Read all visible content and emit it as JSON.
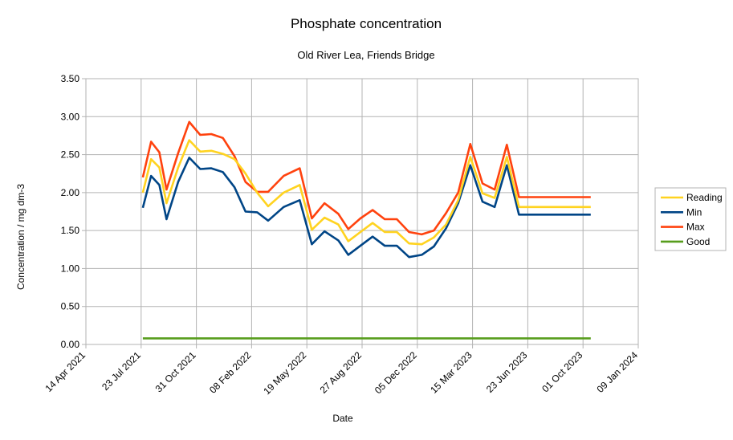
{
  "chart_data": {
    "type": "line",
    "title": "Phosphate concentration",
    "subtitle": "Old River Lea, Friends Bridge",
    "xlabel": "Date",
    "ylabel": "Concentration / mg dm-3",
    "xlim": [
      "2021-04-14",
      "2024-01-09"
    ],
    "x_ticks": [
      "14 Apr 2021",
      "23 Jul 2021",
      "31 Oct 2021",
      "08 Feb 2022",
      "19 May 2022",
      "27 Aug 2022",
      "05 Dec 2022",
      "15 Mar 2023",
      "23 Jun 2023",
      "01 Oct 2023",
      "09 Jan 2024"
    ],
    "ylim": [
      0,
      3.5
    ],
    "y_ticks": [
      "0.00",
      "0.50",
      "1.00",
      "1.50",
      "2.00",
      "2.50",
      "3.00",
      "3.50"
    ],
    "grid": true,
    "legend_position": "right",
    "x": [
      "2021-07-26",
      "2021-08-10",
      "2021-08-25",
      "2021-09-07",
      "2021-09-28",
      "2021-10-18",
      "2021-11-07",
      "2021-11-27",
      "2021-12-18",
      "2022-01-08",
      "2022-01-28",
      "2022-02-18",
      "2022-03-10",
      "2022-04-07",
      "2022-05-06",
      "2022-05-28",
      "2022-06-20",
      "2022-07-15",
      "2022-08-02",
      "2022-08-24",
      "2022-09-15",
      "2022-10-07",
      "2022-10-29",
      "2022-11-20",
      "2022-12-13",
      "2023-01-04",
      "2023-01-26",
      "2023-02-17",
      "2023-03-11",
      "2023-04-02",
      "2023-04-24",
      "2023-05-16",
      "2023-06-07",
      "2023-06-29",
      "2023-07-21",
      "2023-08-12",
      "2023-09-03",
      "2023-09-25",
      "2023-10-15"
    ],
    "series": [
      {
        "name": "Reading",
        "color": "#ffd320",
        "values": [
          2.0,
          2.44,
          2.33,
          1.86,
          2.33,
          2.69,
          2.54,
          2.55,
          2.51,
          2.44,
          2.25,
          2.0,
          1.82,
          2.0,
          2.1,
          1.51,
          1.67,
          1.58,
          1.36,
          1.48,
          1.6,
          1.48,
          1.48,
          1.33,
          1.32,
          1.41,
          1.58,
          1.9,
          2.47,
          1.99,
          1.93,
          2.47,
          1.81,
          1.81,
          1.81,
          1.81,
          1.81,
          1.81,
          1.81
        ]
      },
      {
        "name": "Min",
        "color": "#004586",
        "values": [
          1.8,
          2.22,
          2.1,
          1.65,
          2.14,
          2.46,
          2.31,
          2.32,
          2.27,
          2.07,
          1.75,
          1.74,
          1.63,
          1.81,
          1.9,
          1.32,
          1.49,
          1.37,
          1.18,
          1.3,
          1.42,
          1.3,
          1.3,
          1.15,
          1.18,
          1.29,
          1.53,
          1.86,
          2.36,
          1.88,
          1.81,
          2.36,
          1.71,
          1.71,
          1.71,
          1.71,
          1.71,
          1.71,
          1.71
        ]
      },
      {
        "name": "Max",
        "color": "#ff420e",
        "values": [
          2.2,
          2.67,
          2.53,
          2.04,
          2.52,
          2.93,
          2.76,
          2.77,
          2.72,
          2.48,
          2.14,
          2.01,
          2.01,
          2.22,
          2.32,
          1.66,
          1.86,
          1.72,
          1.52,
          1.66,
          1.77,
          1.65,
          1.65,
          1.48,
          1.45,
          1.5,
          1.73,
          2.0,
          2.64,
          2.12,
          2.04,
          2.63,
          1.94,
          1.94,
          1.94,
          1.94,
          1.94,
          1.94,
          1.94
        ]
      },
      {
        "name": "Good",
        "color": "#579d1c",
        "values": [
          0.08,
          0.08,
          0.08,
          0.08,
          0.08,
          0.08,
          0.08,
          0.08,
          0.08,
          0.08,
          0.08,
          0.08,
          0.08,
          0.08,
          0.08,
          0.08,
          0.08,
          0.08,
          0.08,
          0.08,
          0.08,
          0.08,
          0.08,
          0.08,
          0.08,
          0.08,
          0.08,
          0.08,
          0.08,
          0.08,
          0.08,
          0.08,
          0.08,
          0.08,
          0.08,
          0.08,
          0.08,
          0.08,
          0.08
        ]
      }
    ]
  }
}
